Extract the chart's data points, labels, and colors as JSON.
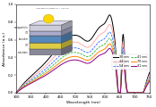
{
  "title": "",
  "xlabel": "Wavelength (nm)",
  "ylabel": "Absorbance (a.u.)",
  "xlim": [
    300,
    750
  ],
  "ylim": [
    0.0,
    1.0
  ],
  "xticks": [
    300,
    350,
    400,
    450,
    500,
    550,
    600,
    650,
    700,
    750
  ],
  "yticks": [
    0.0,
    0.2,
    0.4,
    0.6,
    0.8,
    1.0
  ],
  "lines": [
    {
      "label": "30 nm",
      "color": "#000000",
      "linestyle": "-",
      "lw": 0.7,
      "scale": 1.0
    },
    {
      "label": "44 nm",
      "color": "#FFAAAA",
      "linestyle": "-",
      "lw": 0.7,
      "scale": 0.88
    },
    {
      "label": "54 nm",
      "color": "#4477FF",
      "linestyle": "--",
      "lw": 0.7,
      "scale": 0.78
    },
    {
      "label": "41 nm",
      "color": "#44BB44",
      "linestyle": "--",
      "lw": 0.7,
      "scale": 0.7
    },
    {
      "label": "70 nm",
      "color": "#FF8800",
      "linestyle": "-",
      "lw": 0.7,
      "scale": 0.63
    },
    {
      "label": "41 nm",
      "color": "#880088",
      "linestyle": "-",
      "lw": 0.7,
      "scale": 0.57
    }
  ],
  "inset_layers": [
    {
      "color": "#C8C8E8",
      "label": "nanoparticle"
    },
    {
      "color": "#B8B8D8",
      "label": "ITO"
    },
    {
      "color": "#D0D0F0",
      "label": "absorber"
    },
    {
      "color": "#F0E040",
      "label": "ITO"
    },
    {
      "color": "#4488CC",
      "label": "substrate"
    }
  ],
  "background_color": "#ffffff"
}
